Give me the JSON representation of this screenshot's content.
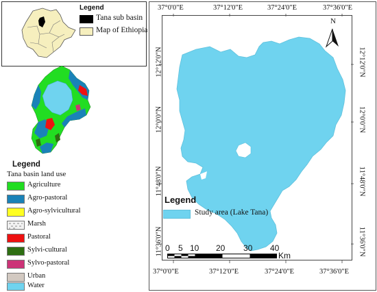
{
  "inset_legend": {
    "title": "Legend",
    "items": [
      {
        "label": "Tana sub basin",
        "color": "#000000"
      },
      {
        "label": "Map of Ethiopia",
        "color": "#f6efbe"
      }
    ]
  },
  "landuse_legend": {
    "title": "Legend",
    "subtitle": "Tana basin land use",
    "items": [
      {
        "label": "Agriculture",
        "color": "#22dd22"
      },
      {
        "label": "Agro-pastoral",
        "color": "#1a82b8"
      },
      {
        "label": "Agro-sylvicultural",
        "color": "#ffff22"
      },
      {
        "label": "Marsh",
        "color": "#e8e8e8",
        "pattern": "marsh"
      },
      {
        "label": "Pastoral",
        "color": "#ee1111"
      },
      {
        "label": "Sylvi-cultural",
        "color": "#2e6e12"
      },
      {
        "label": "Sylvo-pastoral",
        "color": "#cc3377"
      },
      {
        "label": "Urban",
        "color": "#d2c9c1"
      },
      {
        "label": "Water",
        "color": "#6fd3ef"
      }
    ]
  },
  "main_map": {
    "lake_color": "#6fd3ef",
    "top_labels": [
      "37°0'0\"E",
      "37°12'0\"E",
      "37°24'0\"E",
      "37°36'0\"E"
    ],
    "bottom_labels": [
      "37°0'0\"E",
      "37°12'0\"E",
      "37°24'0\"E",
      "37°36'0\"E"
    ],
    "left_labels": [
      "12°12'0\"N",
      "12°0'0\"N",
      "11°48'0\"N",
      "11°36'0\"N"
    ],
    "right_labels": [
      "12°12'0\"N",
      "12°0'0\"N",
      "11°48'0\"N",
      "11°36'0\"N"
    ],
    "north_arrow_label": "N",
    "legend_title": "Legend",
    "legend_item": "Study area (Lake Tana)",
    "scale_labels": [
      "0",
      "5",
      "10",
      "20",
      "30",
      "40"
    ],
    "scale_unit": "Km"
  }
}
